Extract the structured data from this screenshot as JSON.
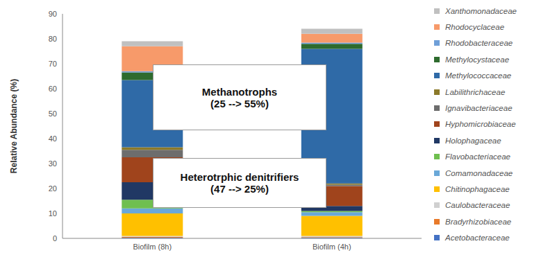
{
  "chart_data": {
    "type": "bar",
    "stacked": true,
    "categories": [
      "Biofilm (8h)",
      "Biofilm (4h)"
    ],
    "y_label": "Relative Abundance (%)",
    "ylim": [
      0,
      90
    ],
    "yticks": [
      0,
      10,
      20,
      30,
      40,
      50,
      60,
      70,
      80,
      90
    ],
    "grid": false,
    "legend": "right",
    "series": [
      {
        "name": "Acetobacteraceae",
        "color": "#4472c4",
        "values": [
          0.3,
          0.3
        ]
      },
      {
        "name": "Bradyrhizobiaceae",
        "color": "#e87a2a",
        "values": [
          0.3,
          0.2
        ]
      },
      {
        "name": "Caulobacteraceae",
        "color": "#d0d0d0",
        "values": [
          0.4,
          0.5
        ]
      },
      {
        "name": "Chitinophagaceae",
        "color": "#ffc000",
        "values": [
          9,
          8
        ]
      },
      {
        "name": "Comamonadaceae",
        "color": "#6aa8d8",
        "values": [
          2,
          1.5
        ]
      },
      {
        "name": "Flavobacteriaceae",
        "color": "#6fbf4f",
        "values": [
          3.5,
          0.5
        ]
      },
      {
        "name": "Holophagaceae",
        "color": "#203864",
        "values": [
          7,
          2
        ]
      },
      {
        "name": "Hyphomicrobiaceae",
        "color": "#a0441c",
        "values": [
          10,
          8
        ]
      },
      {
        "name": "Ignavibacteriaceae",
        "color": "#6d6d6d",
        "values": [
          3,
          0.5
        ]
      },
      {
        "name": "Labilithrichaceae",
        "color": "#8c7a2a",
        "values": [
          1,
          0.5
        ]
      },
      {
        "name": "Methylococcaceae",
        "color": "#2f6aa7",
        "values": [
          27,
          54
        ]
      },
      {
        "name": "Methylocystaceae",
        "color": "#2e6b2e",
        "values": [
          3,
          2
        ]
      },
      {
        "name": "Rhodobacteraceae",
        "color": "#6f9fd8",
        "values": [
          0.5,
          0.5
        ]
      },
      {
        "name": "Rhodocyclaceae",
        "color": "#f79a6a",
        "values": [
          10,
          3.5
        ]
      },
      {
        "name": "Xanthomonadaceae",
        "color": "#c0c0c0",
        "values": [
          2,
          2
        ]
      }
    ],
    "annotations": [
      {
        "lines": [
          "Methanotrophs",
          "(25 --> 55%)"
        ]
      },
      {
        "lines": [
          "Heterotrphic denitrifiers",
          "(47 --> 25%)"
        ]
      }
    ]
  }
}
